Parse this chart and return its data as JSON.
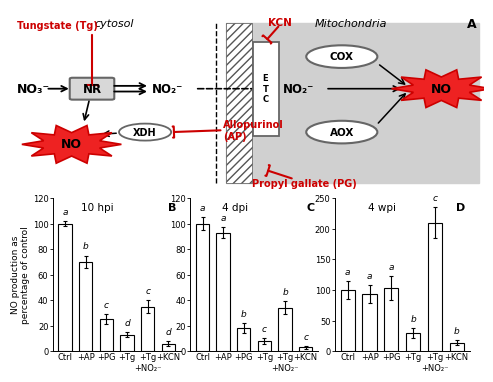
{
  "panel_B": {
    "title": "10 hpi",
    "label": "B",
    "categories": [
      "Ctrl",
      "+AP",
      "+PG",
      "+Tg",
      "+Tg\n+NO₂⁻",
      "+KCN"
    ],
    "values": [
      100,
      70,
      25,
      13,
      35,
      6
    ],
    "errors": [
      2,
      5,
      4,
      2,
      5,
      2
    ],
    "sig_labels": [
      "a",
      "b",
      "c",
      "d",
      "c",
      "d"
    ],
    "ylim": [
      0,
      120
    ],
    "yticks": [
      0,
      20,
      40,
      60,
      80,
      100,
      120
    ]
  },
  "panel_C": {
    "title": "4 dpi",
    "label": "C",
    "categories": [
      "Ctrl",
      "+AP",
      "+PG",
      "+Tg",
      "+Tg\n+NO₂⁻",
      "+KCN"
    ],
    "values": [
      100,
      93,
      18,
      8,
      34,
      3
    ],
    "errors": [
      5,
      4,
      4,
      2,
      5,
      1
    ],
    "sig_labels": [
      "a",
      "a",
      "b",
      "c",
      "b",
      "c"
    ],
    "ylim": [
      0,
      120
    ],
    "yticks": [
      0,
      20,
      40,
      60,
      80,
      100,
      120
    ]
  },
  "panel_D": {
    "title": "4 wpi",
    "label": "D",
    "categories": [
      "Ctrl",
      "+AP",
      "+PG",
      "+Tg",
      "+Tg\n+NO₂⁻",
      "+KCN"
    ],
    "values": [
      100,
      93,
      103,
      30,
      210,
      14
    ],
    "errors": [
      15,
      15,
      20,
      8,
      25,
      4
    ],
    "sig_labels": [
      "a",
      "a",
      "a",
      "b",
      "c",
      "b"
    ],
    "ylim": [
      0,
      250
    ],
    "yticks": [
      0,
      50,
      100,
      150,
      200,
      250
    ]
  },
  "ylabel": "NO production as\npercentage of control",
  "bar_color": "#ffffff",
  "bar_edgecolor": "#000000",
  "bar_width": 0.65,
  "sig_fontsize": 6.5,
  "title_fontsize": 7.5,
  "label_fontsize": 8,
  "tick_fontsize": 6,
  "ylabel_fontsize": 6.5,
  "diagram": {
    "cytosol_text": "cytosol",
    "mito_text": "Mitochondria",
    "no3_label": "NO₃⁻",
    "no2_cyto_label": "NO₂⁻",
    "no2_mito_label": "NO₂⁻",
    "no_label": "NO",
    "nr_label": "NR",
    "xdh_label": "XDH",
    "cox_label": "COX",
    "aox_label": "AOX",
    "etc_label": "E\nT\nC",
    "tungstate_label": "Tungstate (Tg)",
    "allopurinol_label": "Allopurinol\n(AP)",
    "kcn_label": "KCN",
    "pg_label": "Propyl gallate (PG)",
    "panel_label": "A",
    "mito_bg": "#d0d0d0",
    "hatch_color": "#888888",
    "red_color": "#cc0000",
    "burst_fill": "#ee2222",
    "box_fill": "#d8d8d8",
    "box_edge": "#666666"
  }
}
